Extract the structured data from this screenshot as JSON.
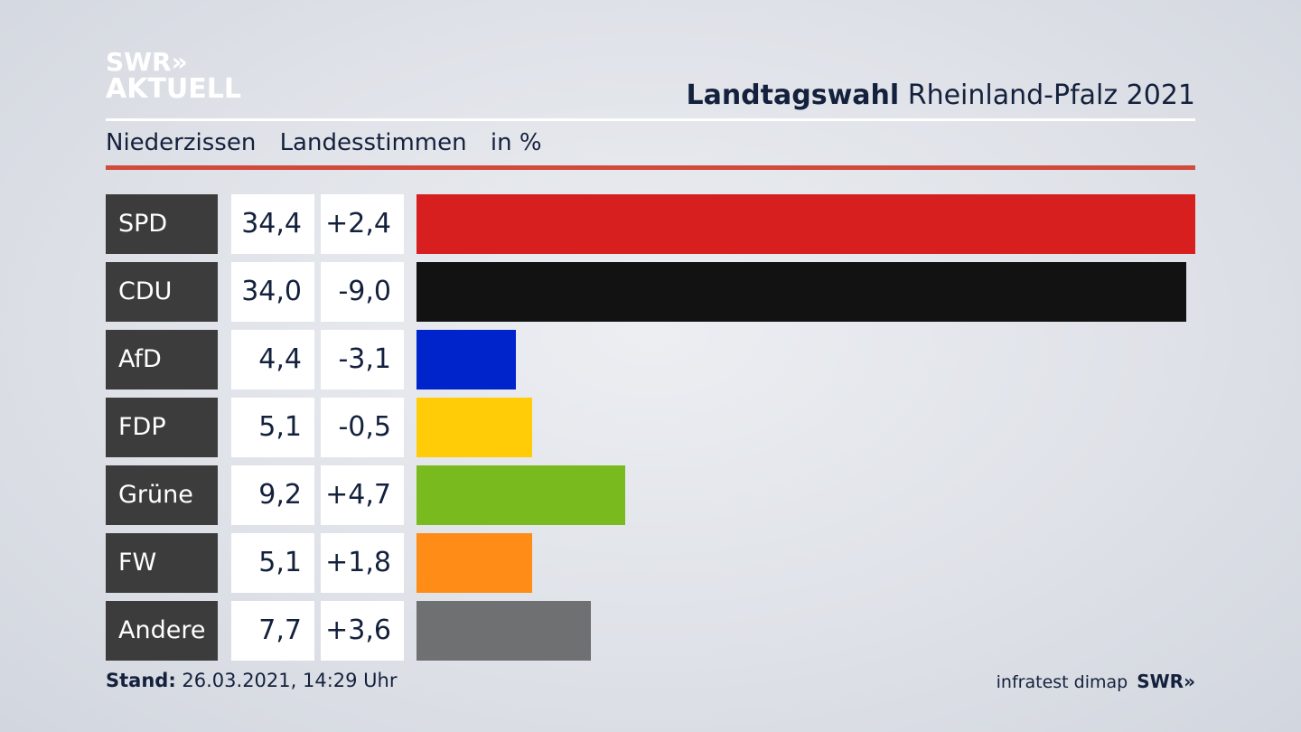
{
  "logo": {
    "line1": "SWR»",
    "line2": "AKTUELL"
  },
  "title": {
    "bold": "Landtagswahl",
    "rest": " Rheinland-Pfalz 2021"
  },
  "subtitle": {
    "place": "Niederzissen",
    "type": "Landesstimmen",
    "unit": "in %"
  },
  "chart_data": {
    "type": "bar",
    "orientation": "horizontal",
    "categories": [
      "SPD",
      "CDU",
      "AfD",
      "FDP",
      "Grüne",
      "FW",
      "Andere"
    ],
    "values": [
      34.4,
      34.0,
      4.4,
      5.1,
      9.2,
      5.1,
      7.7
    ],
    "value_labels": [
      "34,4",
      "34,0",
      "4,4",
      "5,1",
      "9,2",
      "5,1",
      "7,7"
    ],
    "change": [
      2.4,
      -9.0,
      -3.1,
      -0.5,
      4.7,
      1.8,
      3.6
    ],
    "change_labels": [
      "+2,4",
      "-9,0",
      "-3,1",
      "-0,5",
      "+4,7",
      "+1,8",
      "+3,6"
    ],
    "colors": [
      "#d81f1f",
      "#121212",
      "#0024cc",
      "#ffcc07",
      "#79bb1e",
      "#ff8c17",
      "#6f7072"
    ],
    "xlim": [
      0,
      34.4
    ],
    "grid": false,
    "legend": "none"
  },
  "footer": {
    "stand_label": "Stand:",
    "stand_value": " 26.03.2021, 14:29 Uhr",
    "source": "infratest dimap",
    "brand": "SWR»"
  }
}
